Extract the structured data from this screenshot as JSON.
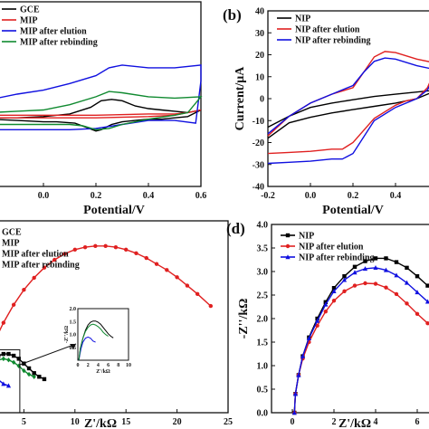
{
  "chart_data": [
    {
      "panel": "a",
      "type": "line",
      "panel_label": "",
      "xlabel": "Potential/V",
      "ylabel": "",
      "xlim": [
        -0.2,
        0.6
      ],
      "ylim": [
        -30,
        40
      ],
      "xticks": [
        "0.0",
        "0.2",
        "0.4",
        "0.6"
      ],
      "legend": "top-left",
      "series": [
        {
          "name": "GCE",
          "color": "#000000",
          "x": [
            -0.2,
            -0.1,
            0.0,
            0.1,
            0.18,
            0.22,
            0.26,
            0.3,
            0.35,
            0.4,
            0.45,
            0.5,
            0.55,
            0.6,
            0.55,
            0.5,
            0.45,
            0.4,
            0.35,
            0.3,
            0.26,
            0.22,
            0.2,
            0.16,
            0.12,
            0.05,
            0.0,
            -0.1,
            -0.2
          ],
          "y": [
            -4,
            -4,
            -3.5,
            -2.5,
            0,
            2.5,
            3,
            2.5,
            0.5,
            -0.5,
            -1,
            -1.5,
            -2,
            -1,
            -3.5,
            -4,
            -4.5,
            -4.5,
            -5,
            -5.5,
            -6.5,
            -8.5,
            -9,
            -7.5,
            -6,
            -5.5,
            -5.5,
            -5,
            -4.5
          ]
        },
        {
          "name": "MIP",
          "color": "#e02020",
          "x": [
            -0.2,
            0.0,
            0.2,
            0.4,
            0.5,
            0.55,
            0.6,
            0.5,
            0.4,
            0.2,
            0.0,
            -0.2
          ],
          "y": [
            -3,
            -3,
            -3,
            -2.5,
            -2.5,
            -2,
            -1,
            -3,
            -3.5,
            -4,
            -4,
            -4
          ]
        },
        {
          "name": "MIP after elution",
          "color": "#1010e0",
          "x": [
            -0.2,
            -0.1,
            0.0,
            0.1,
            0.2,
            0.25,
            0.3,
            0.4,
            0.5,
            0.6,
            0.6,
            0.58,
            0.5,
            0.4,
            0.3,
            0.2,
            0.1,
            0.0,
            -0.2
          ],
          "y": [
            3,
            5,
            6.5,
            9,
            12,
            15,
            16,
            15,
            15,
            16,
            10,
            -6,
            -5,
            -5,
            -6.5,
            -8,
            -8.5,
            -8.5,
            -8.5
          ]
        },
        {
          "name": "MIP after rebinding",
          "color": "#108a30",
          "x": [
            -0.2,
            -0.1,
            0.0,
            0.1,
            0.2,
            0.25,
            0.3,
            0.4,
            0.5,
            0.6,
            0.55,
            0.5,
            0.4,
            0.3,
            0.25,
            0.2,
            0.15,
            0.1,
            0.0,
            -0.1,
            -0.2
          ],
          "y": [
            -2,
            -1.5,
            -1,
            1,
            4,
            6,
            5.5,
            4,
            3.5,
            4,
            -2,
            -3,
            -4.5,
            -6.5,
            -8,
            -8.5,
            -7,
            -6.5,
            -6.5,
            -6.5,
            -6.5
          ]
        }
      ]
    },
    {
      "panel": "b",
      "type": "line",
      "panel_label": "(b)",
      "xlabel": "Potential/V",
      "ylabel": "Current/μA",
      "xlim": [
        -0.2,
        0.6
      ],
      "ylim": [
        -40,
        40
      ],
      "yticks": [
        "-40",
        "-30",
        "-20",
        "-10",
        "0",
        "10",
        "20",
        "30",
        "40"
      ],
      "xticks": [
        "-0.2",
        "0.0",
        "0.2",
        "0.4",
        "0.6"
      ],
      "legend": "top-left",
      "series": [
        {
          "name": "NIP",
          "color": "#000000",
          "x": [
            -0.2,
            -0.1,
            0.0,
            0.1,
            0.2,
            0.3,
            0.4,
            0.5,
            0.6,
            0.5,
            0.4,
            0.3,
            0.2,
            0.1,
            0.0,
            -0.1,
            -0.2
          ],
          "y": [
            -13,
            -8,
            -4,
            -2,
            -0.5,
            1,
            2,
            3,
            4,
            0,
            -2,
            -3.5,
            -5,
            -6.5,
            -8.5,
            -11,
            -18
          ]
        },
        {
          "name": "NIP after elution",
          "color": "#e02020",
          "x": [
            -0.2,
            -0.1,
            0.0,
            0.1,
            0.2,
            0.25,
            0.3,
            0.35,
            0.4,
            0.5,
            0.6,
            0.55,
            0.5,
            0.45,
            0.4,
            0.3,
            0.2,
            0.15,
            0.1,
            0.0,
            -0.1,
            -0.2
          ],
          "y": [
            -17,
            -8,
            -2,
            2,
            5,
            12,
            19,
            21.5,
            21,
            18,
            16,
            5,
            0,
            -1,
            -3,
            -9,
            -20,
            -23,
            -23,
            -24,
            -24.5,
            -25
          ]
        },
        {
          "name": "NIP after rebinding",
          "color": "#1010e0",
          "x": [
            -0.2,
            -0.1,
            0.0,
            0.1,
            0.2,
            0.25,
            0.3,
            0.35,
            0.4,
            0.5,
            0.6,
            0.55,
            0.5,
            0.4,
            0.3,
            0.2,
            0.15,
            0.1,
            0.0,
            -0.1,
            -0.2
          ],
          "y": [
            -16,
            -8,
            -2,
            2,
            6,
            12,
            17,
            18.5,
            18,
            15,
            13,
            4,
            0,
            -4,
            -10,
            -25,
            -27.5,
            -27.5,
            -28.5,
            -29,
            -29.5
          ]
        }
      ]
    },
    {
      "panel": "c",
      "type": "line",
      "panel_label": "",
      "xlabel": "Z'/kΩ",
      "ylabel": "",
      "xlim": [
        0,
        25
      ],
      "ylim": [
        0,
        3.2
      ],
      "xticks": [
        "0",
        "5",
        "10",
        "15",
        "20",
        "25"
      ],
      "legend": "top-left",
      "series": [
        {
          "name": "GCE",
          "color": "#000000",
          "marker": "square",
          "x": [
            0.2,
            0.5,
            1.0,
            1.5,
            2.0,
            2.5,
            3.0,
            3.5,
            4.0,
            4.5,
            5.0,
            5.5,
            6.0,
            6.5,
            7.0
          ],
          "y": [
            0.0,
            0.3,
            0.55,
            0.75,
            0.88,
            0.95,
            0.98,
            0.98,
            0.95,
            0.9,
            0.82,
            0.74,
            0.66,
            0.6,
            0.56
          ]
        },
        {
          "name": "MIP",
          "color": "#e02020",
          "marker": "circle",
          "x": [
            0.2,
            0.6,
            1.2,
            2.0,
            3.0,
            4.0,
            5.0,
            6.0,
            7.0,
            8.0,
            9.0,
            10.0,
            11.0,
            12.0,
            13.0,
            14.0,
            15.0,
            16.0,
            17.0,
            18.0,
            19.0,
            20.0,
            21.0,
            22.0,
            23.3
          ],
          "y": [
            0.0,
            0.35,
            0.75,
            1.15,
            1.5,
            1.8,
            2.05,
            2.25,
            2.42,
            2.55,
            2.65,
            2.72,
            2.76,
            2.78,
            2.78,
            2.76,
            2.72,
            2.66,
            2.58,
            2.48,
            2.38,
            2.26,
            2.12,
            1.98,
            1.78
          ]
        },
        {
          "name": "MIP after elution",
          "color": "#1010e0",
          "marker": "triangle",
          "x": [
            0.2,
            0.6,
            1.0,
            1.5,
            2.0,
            2.5,
            3.0,
            3.5
          ],
          "y": [
            0.0,
            0.28,
            0.45,
            0.55,
            0.58,
            0.55,
            0.48,
            0.45
          ]
        },
        {
          "name": "MIP after rebinding",
          "color": "#108a30",
          "marker": "diamond",
          "x": [
            0.2,
            0.5,
            1.0,
            1.5,
            2.0,
            2.5,
            3.0,
            3.5,
            4.0,
            4.5,
            5.0,
            5.5,
            6.0
          ],
          "y": [
            0.0,
            0.3,
            0.55,
            0.72,
            0.82,
            0.88,
            0.9,
            0.88,
            0.84,
            0.78,
            0.7,
            0.64,
            0.6
          ]
        }
      ],
      "inset": {
        "ylabel": "-Z''/kΩ",
        "xlabel": "Z'/kΩ",
        "xlim": [
          0,
          10
        ],
        "ylim": [
          0,
          2.0
        ],
        "xticks": [
          "0",
          "2",
          "4",
          "6",
          "8",
          "10"
        ],
        "yticks": [
          "0.5",
          "1.0",
          "1.5",
          "2.0"
        ]
      }
    },
    {
      "panel": "d",
      "type": "line",
      "panel_label": "(d)",
      "xlabel": "Z'/kΩ",
      "ylabel": "-Z''/kΩ",
      "xlim": [
        -1,
        7
      ],
      "ylim": [
        0,
        4.0
      ],
      "yticks": [
        "0.0",
        "0.5",
        "1.0",
        "1.5",
        "2.0",
        "2.5",
        "3.0",
        "3.5",
        "4.0"
      ],
      "xticks": [
        "0",
        "2",
        "4",
        "6"
      ],
      "legend": "top-left",
      "series": [
        {
          "name": "NIP",
          "color": "#000000",
          "marker": "square",
          "x": [
            0.1,
            0.15,
            0.3,
            0.5,
            0.8,
            1.2,
            1.6,
            2.0,
            2.5,
            3.0,
            3.5,
            4.0,
            4.5,
            5.0,
            5.5,
            6.0,
            6.5,
            7.0
          ],
          "y": [
            0.0,
            0.4,
            0.8,
            1.2,
            1.6,
            2.0,
            2.35,
            2.65,
            2.9,
            3.1,
            3.22,
            3.28,
            3.28,
            3.2,
            3.08,
            2.9,
            2.7,
            2.5
          ]
        },
        {
          "name": "NIP after elution",
          "color": "#e02020",
          "marker": "circle",
          "x": [
            0.1,
            0.15,
            0.3,
            0.5,
            0.8,
            1.2,
            1.6,
            2.0,
            2.5,
            3.0,
            3.5,
            4.0,
            4.5,
            5.0,
            5.5,
            6.0,
            6.5,
            7.0
          ],
          "y": [
            0.0,
            0.4,
            0.8,
            1.15,
            1.5,
            1.85,
            2.15,
            2.38,
            2.58,
            2.7,
            2.75,
            2.74,
            2.66,
            2.52,
            2.32,
            2.1,
            1.9,
            1.72
          ]
        },
        {
          "name": "NIP after rebinding",
          "color": "#1010e0",
          "marker": "triangle",
          "x": [
            0.1,
            0.15,
            0.3,
            0.5,
            0.8,
            1.2,
            1.6,
            2.0,
            2.5,
            3.0,
            3.5,
            4.0,
            4.5,
            5.0,
            5.5,
            6.0,
            6.5,
            7.0
          ],
          "y": [
            0.0,
            0.4,
            0.8,
            1.2,
            1.58,
            1.95,
            2.3,
            2.58,
            2.82,
            2.98,
            3.06,
            3.08,
            3.03,
            2.92,
            2.76,
            2.56,
            2.36,
            2.2
          ]
        }
      ]
    }
  ]
}
